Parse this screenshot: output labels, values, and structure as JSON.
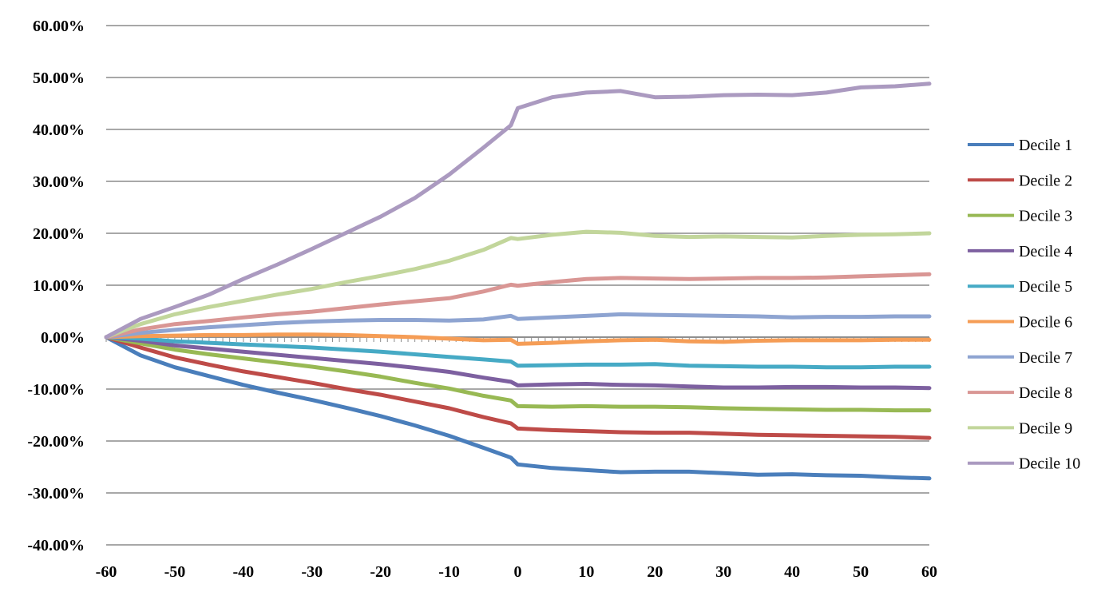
{
  "chart_data": {
    "type": "line",
    "title": "",
    "xlabel": "",
    "ylabel": "",
    "xlim": [
      -60,
      60
    ],
    "ylim": [
      -0.4,
      0.6
    ],
    "grid": true,
    "legend_position": "right",
    "x_ticks": [
      "-60",
      "-50",
      "-40",
      "-30",
      "-20",
      "-10",
      "0",
      "10",
      "20",
      "30",
      "40",
      "50",
      "60"
    ],
    "y_ticks": [
      "60.00%",
      "50.00%",
      "40.00%",
      "30.00%",
      "20.00%",
      "10.00%",
      "0.00%",
      "-10.00%",
      "-20.00%",
      "-30.00%",
      "-40.00%"
    ],
    "x": [
      -60,
      -55,
      -50,
      -45,
      -40,
      -35,
      -30,
      -25,
      -20,
      -15,
      -10,
      -5,
      -1,
      0,
      5,
      10,
      15,
      20,
      25,
      30,
      35,
      40,
      45,
      50,
      55,
      60
    ],
    "series": [
      {
        "name": "Decile 1",
        "color": "#4a7ebb",
        "values": [
          0,
          -0.035,
          -0.058,
          -0.075,
          -0.092,
          -0.107,
          -0.121,
          -0.136,
          -0.152,
          -0.17,
          -0.19,
          -0.213,
          -0.232,
          -0.245,
          -0.252,
          -0.256,
          -0.26,
          -0.259,
          -0.259,
          -0.262,
          -0.265,
          -0.264,
          -0.266,
          -0.267,
          -0.27,
          -0.272
        ]
      },
      {
        "name": "Decile 2",
        "color": "#be4b48",
        "values": [
          0,
          -0.02,
          -0.039,
          -0.053,
          -0.066,
          -0.077,
          -0.088,
          -0.1,
          -0.111,
          -0.124,
          -0.137,
          -0.154,
          -0.166,
          -0.176,
          -0.179,
          -0.181,
          -0.183,
          -0.184,
          -0.184,
          -0.186,
          -0.188,
          -0.189,
          -0.19,
          -0.191,
          -0.192,
          -0.194
        ]
      },
      {
        "name": "Decile 3",
        "color": "#98b954",
        "values": [
          0,
          -0.012,
          -0.024,
          -0.033,
          -0.041,
          -0.049,
          -0.057,
          -0.066,
          -0.076,
          -0.088,
          -0.099,
          -0.113,
          -0.122,
          -0.133,
          -0.134,
          -0.133,
          -0.134,
          -0.134,
          -0.135,
          -0.137,
          -0.138,
          -0.139,
          -0.14,
          -0.14,
          -0.141,
          -0.141
        ]
      },
      {
        "name": "Decile 4",
        "color": "#7d60a0",
        "values": [
          0,
          -0.007,
          -0.016,
          -0.022,
          -0.028,
          -0.034,
          -0.04,
          -0.046,
          -0.052,
          -0.059,
          -0.067,
          -0.078,
          -0.086,
          -0.093,
          -0.091,
          -0.09,
          -0.092,
          -0.093,
          -0.095,
          -0.097,
          -0.097,
          -0.096,
          -0.096,
          -0.097,
          -0.097,
          -0.098
        ]
      },
      {
        "name": "Decile 5",
        "color": "#46aac5",
        "values": [
          0,
          -0.003,
          -0.008,
          -0.011,
          -0.014,
          -0.017,
          -0.02,
          -0.024,
          -0.028,
          -0.033,
          -0.038,
          -0.043,
          -0.047,
          -0.055,
          -0.054,
          -0.053,
          -0.053,
          -0.052,
          -0.055,
          -0.056,
          -0.057,
          -0.057,
          -0.058,
          -0.058,
          -0.057,
          -0.057
        ]
      },
      {
        "name": "Decile 6",
        "color": "#f59d56",
        "values": [
          0,
          0.002,
          0.003,
          0.004,
          0.004,
          0.005,
          0.005,
          0.004,
          0.002,
          0.0,
          -0.003,
          -0.006,
          -0.005,
          -0.013,
          -0.011,
          -0.008,
          -0.006,
          -0.005,
          -0.008,
          -0.009,
          -0.007,
          -0.006,
          -0.006,
          -0.006,
          -0.005,
          -0.005
        ]
      },
      {
        "name": "Decile 7",
        "color": "#8ea4d1",
        "values": [
          0,
          0.008,
          0.014,
          0.019,
          0.023,
          0.027,
          0.03,
          0.032,
          0.033,
          0.033,
          0.032,
          0.034,
          0.041,
          0.035,
          0.038,
          0.041,
          0.044,
          0.043,
          0.042,
          0.041,
          0.04,
          0.038,
          0.039,
          0.039,
          0.04,
          0.04
        ]
      },
      {
        "name": "Decile 8",
        "color": "#d99694",
        "values": [
          0,
          0.015,
          0.025,
          0.031,
          0.038,
          0.044,
          0.049,
          0.056,
          0.063,
          0.069,
          0.075,
          0.088,
          0.101,
          0.099,
          0.106,
          0.112,
          0.114,
          0.113,
          0.112,
          0.113,
          0.114,
          0.114,
          0.115,
          0.117,
          0.119,
          0.121
        ]
      },
      {
        "name": "Decile 9",
        "color": "#c2d69b",
        "values": [
          0,
          0.025,
          0.044,
          0.058,
          0.07,
          0.082,
          0.093,
          0.106,
          0.118,
          0.131,
          0.147,
          0.168,
          0.191,
          0.189,
          0.197,
          0.203,
          0.201,
          0.195,
          0.193,
          0.194,
          0.193,
          0.192,
          0.195,
          0.197,
          0.198,
          0.2
        ]
      },
      {
        "name": "Decile 10",
        "color": "#ab9ac0",
        "values": [
          0,
          0.035,
          0.058,
          0.082,
          0.112,
          0.14,
          0.17,
          0.201,
          0.232,
          0.268,
          0.313,
          0.365,
          0.408,
          0.441,
          0.462,
          0.471,
          0.474,
          0.462,
          0.463,
          0.466,
          0.467,
          0.466,
          0.471,
          0.481,
          0.483,
          0.488
        ]
      }
    ]
  }
}
